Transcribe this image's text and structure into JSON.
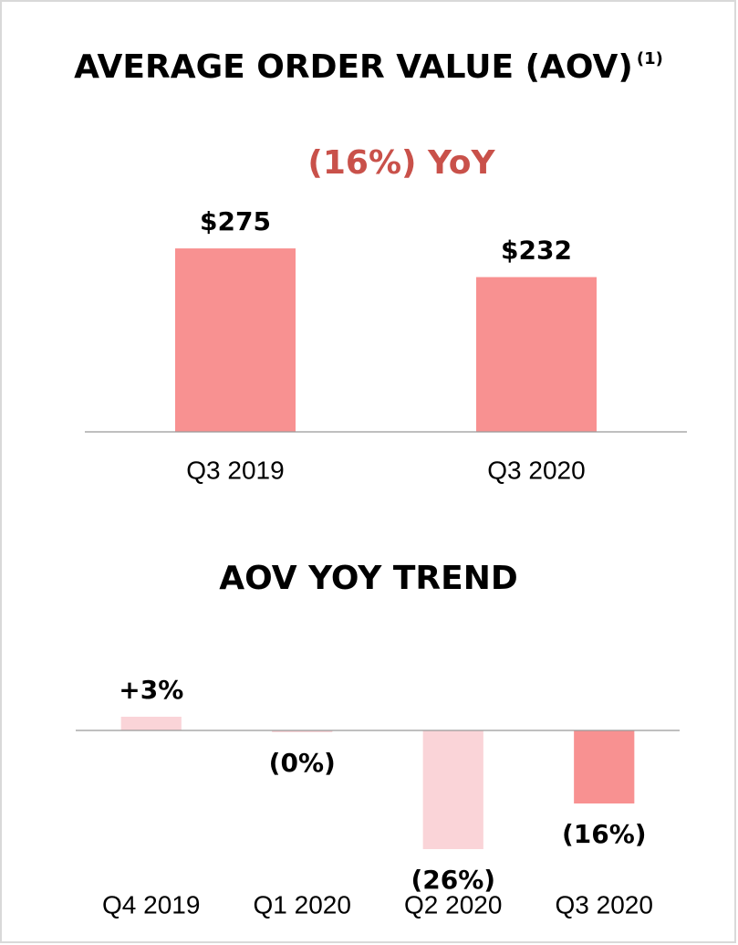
{
  "chart_data": [
    {
      "type": "bar",
      "title": "AVERAGE ORDER VALUE (AOV)",
      "title_note": "(1)",
      "annotation": "(16%) YoY",
      "categories": [
        "Q3 2019",
        "Q3 2020"
      ],
      "values": [
        275,
        232
      ],
      "value_labels": [
        "$275",
        "$232"
      ],
      "colors": [
        "#f89191",
        "#f89191"
      ],
      "ylim": [
        0,
        375
      ]
    },
    {
      "type": "bar",
      "title": "AOV YOY TREND",
      "categories": [
        "Q4 2019",
        "Q1 2020",
        "Q2 2020",
        "Q3 2020"
      ],
      "values": [
        3,
        -0.4,
        -26,
        -16
      ],
      "value_labels": [
        "+3%",
        "(0%)",
        "(26%)",
        "(16%)"
      ],
      "colors": [
        "#fad4d8",
        "#fad4d8",
        "#fad4d8",
        "#f89191"
      ],
      "ylim": [
        -30,
        8
      ]
    }
  ]
}
